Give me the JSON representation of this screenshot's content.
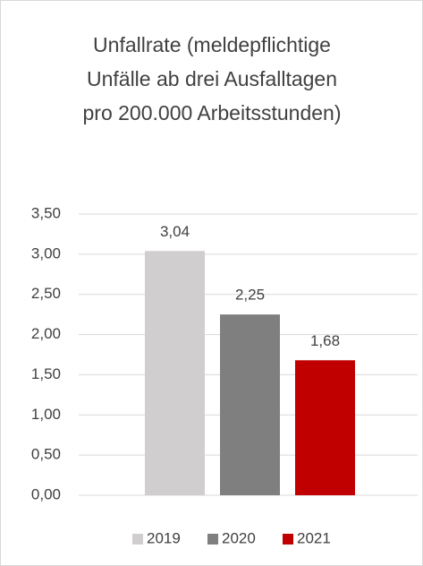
{
  "chart_data": {
    "type": "bar",
    "title": [
      "Unfallrate (meldepflichtige",
      "Unfälle ab drei Ausfalltagen",
      "pro 200.000 Arbeitsstunden)"
    ],
    "categories": [
      null
    ],
    "series": [
      {
        "name": "2019",
        "color": "#d0cece",
        "values": [
          3.04
        ],
        "value_labels": [
          "3,04"
        ]
      },
      {
        "name": "2020",
        "color": "#7f7f7f",
        "values": [
          2.25
        ],
        "value_labels": [
          "2,25"
        ]
      },
      {
        "name": "2021",
        "color": "#c00000",
        "values": [
          1.68
        ],
        "value_labels": [
          "1,68"
        ]
      }
    ],
    "ylim": [
      0,
      3.5
    ],
    "yticks": [
      {
        "value": 0,
        "label": "0,00"
      },
      {
        "value": 0.5,
        "label": "0,50"
      },
      {
        "value": 1,
        "label": "1,00"
      },
      {
        "value": 1.5,
        "label": "1,50"
      },
      {
        "value": 2,
        "label": "2,00"
      },
      {
        "value": 2.5,
        "label": "2,50"
      },
      {
        "value": 3,
        "label": "3,00"
      },
      {
        "value": 3.5,
        "label": "3,50"
      }
    ],
    "grid": true,
    "legend": "bottom"
  }
}
